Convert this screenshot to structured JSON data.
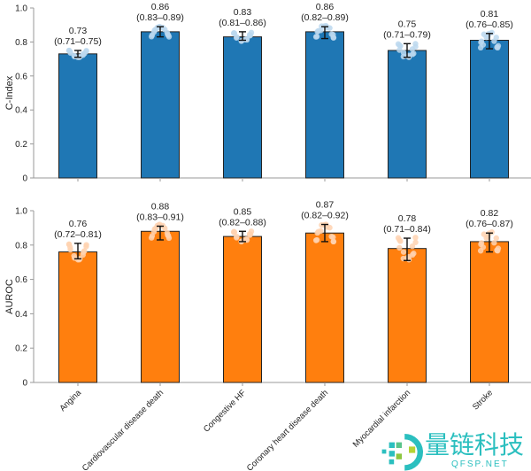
{
  "chart_data": [
    {
      "type": "bar",
      "ylabel": "C-Index",
      "ylim": [
        0,
        1.0
      ],
      "yticks": [
        "0",
        "0.2",
        "0.4",
        "0.6",
        "0.8",
        "1.0"
      ],
      "color": "#1f77b4",
      "categories": [
        "Angina",
        "Cardiovascular disease death",
        "Congestive HF",
        "Coronary heart disease death",
        "Myocardial infarction",
        "Stroke"
      ],
      "values": [
        0.73,
        0.86,
        0.83,
        0.86,
        0.75,
        0.81
      ],
      "ci_low": [
        0.71,
        0.83,
        0.81,
        0.82,
        0.71,
        0.76
      ],
      "ci_high": [
        0.75,
        0.89,
        0.86,
        0.89,
        0.79,
        0.85
      ],
      "labels": [
        "0.73",
        "0.86",
        "0.83",
        "0.86",
        "0.75",
        "0.81"
      ],
      "ci_labels": [
        "(0.71–0.75)",
        "(0.83–0.89)",
        "(0.81–0.86)",
        "(0.82–0.89)",
        "(0.71–0.79)",
        "(0.76–0.85)"
      ]
    },
    {
      "type": "bar",
      "ylabel": "AUROC",
      "ylim": [
        0,
        1.0
      ],
      "yticks": [
        "0",
        "0.2",
        "0.4",
        "0.6",
        "0.8",
        "1.0"
      ],
      "color": "#ff7f0e",
      "categories": [
        "Angina",
        "Cardiovascular disease death",
        "Congestive HF",
        "Coronary heart disease death",
        "Myocardial infarction",
        "Stroke"
      ],
      "values": [
        0.76,
        0.88,
        0.85,
        0.87,
        0.78,
        0.82
      ],
      "ci_low": [
        0.72,
        0.83,
        0.82,
        0.82,
        0.71,
        0.76
      ],
      "ci_high": [
        0.81,
        0.91,
        0.88,
        0.92,
        0.84,
        0.87
      ],
      "labels": [
        "0.76",
        "0.88",
        "0.85",
        "0.87",
        "0.78",
        "0.82"
      ],
      "ci_labels": [
        "(0.72–0.81)",
        "(0.83–0.91)",
        "(0.82–0.88)",
        "(0.82–0.92)",
        "(0.71–0.84)",
        "(0.76–0.87)"
      ]
    }
  ],
  "watermark": {
    "name": "量链科技",
    "site": "QFSP.NET",
    "color": "#2bbfbf"
  }
}
